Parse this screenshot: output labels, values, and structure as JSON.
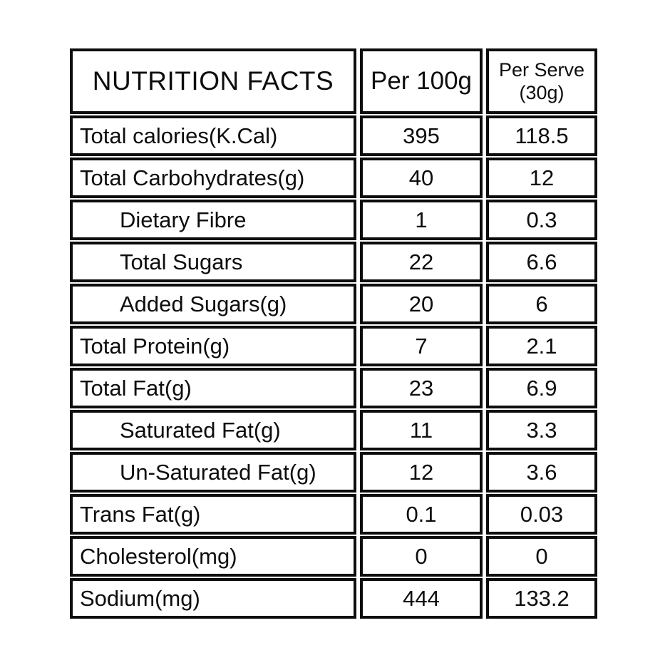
{
  "table": {
    "title": "NUTRITION FACTS",
    "header": {
      "title": "NUTRITION FACTS",
      "per_100g": "Per 100g",
      "per_serve_lines": [
        "Per Serve",
        "(30g)"
      ]
    },
    "rows": [
      {
        "label": "Total calories(K.Cal)",
        "per_100g": "395",
        "per_serve": "118.5"
      },
      {
        "label": "Total Carbohydrates(g)",
        "per_100g": "40",
        "per_serve": "12"
      },
      {
        "label": "Dietary Fibre",
        "per_100g": "1",
        "per_serve": "0.3"
      },
      {
        "label": "Total Sugars",
        "per_100g": "22",
        "per_serve": "6.6"
      },
      {
        "label": "Added Sugars(g)",
        "per_100g": "20",
        "per_serve": "6"
      },
      {
        "label": "Total Protein(g)",
        "per_100g": "7",
        "per_serve": "2.1"
      },
      {
        "label": "Total Fat(g)",
        "per_100g": "23",
        "per_serve": "6.9"
      },
      {
        "label": "Saturated Fat(g)",
        "per_100g": "11",
        "per_serve": "3.3"
      },
      {
        "label": "Un-Saturated Fat(g)",
        "per_100g": "12",
        "per_serve": "3.6"
      },
      {
        "label": "Trans Fat(g)",
        "per_100g": "0.1",
        "per_serve": "0.03"
      },
      {
        "label": "Cholesterol(mg)",
        "per_100g": "0",
        "per_serve": "0"
      },
      {
        "label": "Sodium(mg)",
        "per_100g": "444",
        "per_serve": "133.2"
      }
    ]
  },
  "colors": {
    "border": "#0d0d0d",
    "text": "#0d0d0d",
    "background": "#ffffff"
  }
}
